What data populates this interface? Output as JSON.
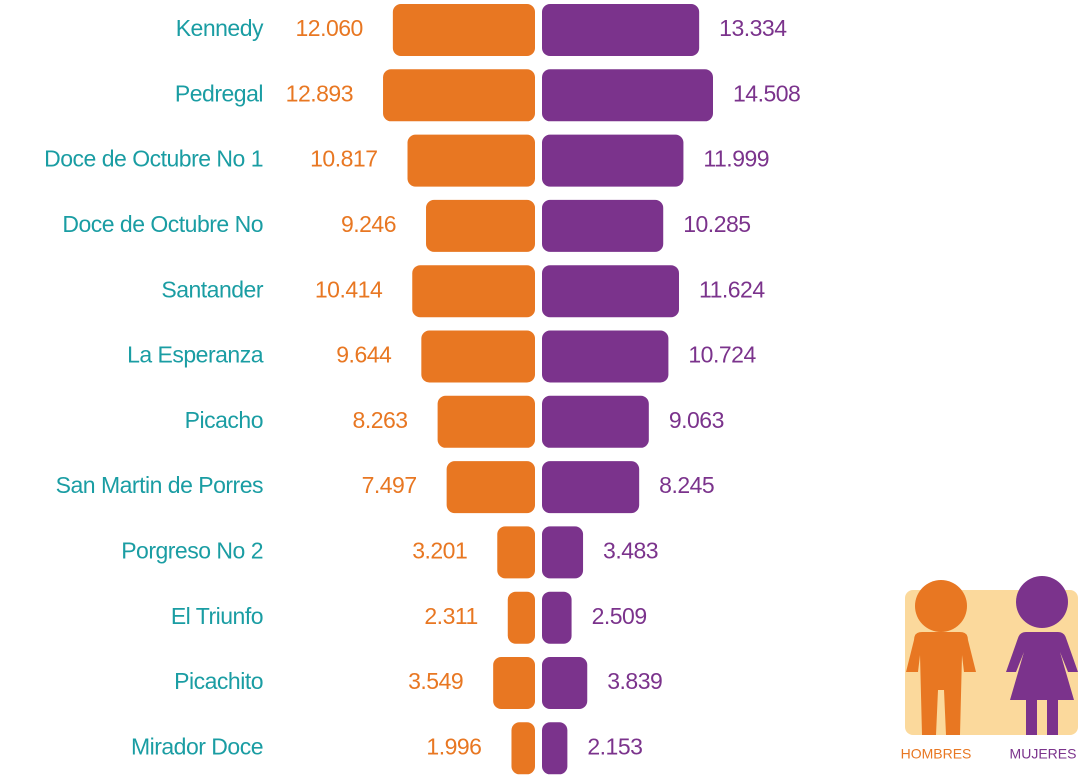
{
  "chart_data": {
    "type": "butterfly",
    "categories": [
      "Kennedy",
      "Pedregal",
      "Doce de Octubre No 1",
      "Doce de Octubre No",
      "Santander",
      "La Esperanza",
      "Picacho",
      "San Martin de Porres",
      "Porgreso No 2",
      "El Triunfo",
      "Picachito",
      "Mirador Doce"
    ],
    "series": [
      {
        "name": "HOMBRES",
        "color": "#e87722",
        "values": [
          12060,
          12893,
          10817,
          9246,
          10414,
          9644,
          8263,
          7497,
          3201,
          2311,
          3549,
          1996
        ],
        "value_labels": [
          "12.060",
          "12.893",
          "10.817",
          "9.246",
          "10.414",
          "9.644",
          "8.263",
          "7.497",
          "3.201",
          "2.311",
          "3.549",
          "1.996"
        ]
      },
      {
        "name": "MUJERES",
        "color": "#7b338c",
        "values": [
          13334,
          14508,
          11999,
          10285,
          11624,
          10724,
          9063,
          8245,
          3483,
          2509,
          3839,
          2153
        ],
        "value_labels": [
          "13.334",
          "14.508",
          "11.999",
          "10.285",
          "11.624",
          "10.724",
          "9.063",
          "8.245",
          "3.483",
          "2.509",
          "3.839",
          "2.153"
        ]
      }
    ],
    "category_color": "#1a9da3"
  }
}
